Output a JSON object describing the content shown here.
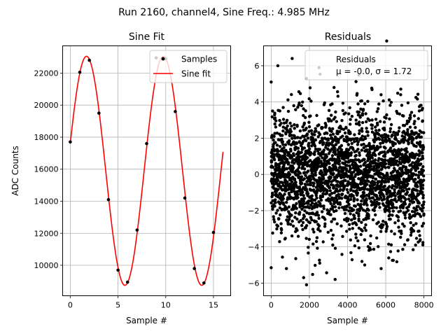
{
  "suptitle": "Run 2160, channel4, Sine Freq.: 4.985 MHz",
  "chart_data": [
    {
      "type": "line",
      "title": "Sine Fit",
      "xlabel": "Sample #",
      "ylabel": "ADC Counts",
      "xlim": [
        -0.8,
        16.8
      ],
      "ylim": [
        8100,
        23700
      ],
      "xticks": [
        0,
        5,
        10,
        15
      ],
      "yticks": [
        10000,
        12000,
        14000,
        16000,
        18000,
        20000,
        22000
      ],
      "grid": true,
      "legend_position": "top-right",
      "series": [
        {
          "name": "Samples",
          "kind": "scatter",
          "color": "#000000",
          "x": [
            0,
            1,
            2,
            3,
            4,
            5,
            6,
            7,
            8,
            9,
            10,
            11,
            12,
            13,
            14,
            15
          ],
          "y": [
            17700,
            22050,
            22800,
            19500,
            14100,
            9700,
            8950,
            12200,
            17600,
            22950,
            22900,
            19600,
            14200,
            9800,
            8900,
            12050
          ]
        },
        {
          "name": "Sine fit",
          "kind": "line",
          "color": "#ff0000",
          "model": {
            "offset": 15900,
            "amplitude": 7150,
            "period": 8.05,
            "peak_x": 1.7,
            "x_start": 0,
            "x_end": 16
          }
        }
      ]
    },
    {
      "type": "scatter",
      "title": "Residuals",
      "xlabel": "Sample #",
      "ylabel": "",
      "xlim": [
        -400,
        8400
      ],
      "ylim": [
        -6.7,
        7.1
      ],
      "xticks": [
        0,
        2000,
        4000,
        6000,
        8000
      ],
      "yticks": [
        -6,
        -4,
        -2,
        0,
        2,
        4,
        6
      ],
      "grid": true,
      "legend_position": "top-right",
      "legend": [
        "Residuals",
        "μ = -0.0, σ = 1.72"
      ],
      "series": [
        {
          "name": "Residuals",
          "color": "#000000",
          "n_points": 8000,
          "mean": -0.0,
          "std": 1.72,
          "notable_points": [
            {
              "x": 1100,
              "y": 6.4
            },
            {
              "x": 350,
              "y": 6.0
            },
            {
              "x": 2500,
              "y": 5.9
            },
            {
              "x": 1850,
              "y": 5.3
            },
            {
              "x": 0,
              "y": 5.1
            },
            {
              "x": 0,
              "y": -5.15
            },
            {
              "x": 1850,
              "y": -6.1
            },
            {
              "x": 1700,
              "y": -5.7
            },
            {
              "x": 3350,
              "y": -5.8
            },
            {
              "x": 800,
              "y": -5.2
            },
            {
              "x": 4900,
              "y": -5.0
            }
          ]
        }
      ]
    }
  ]
}
